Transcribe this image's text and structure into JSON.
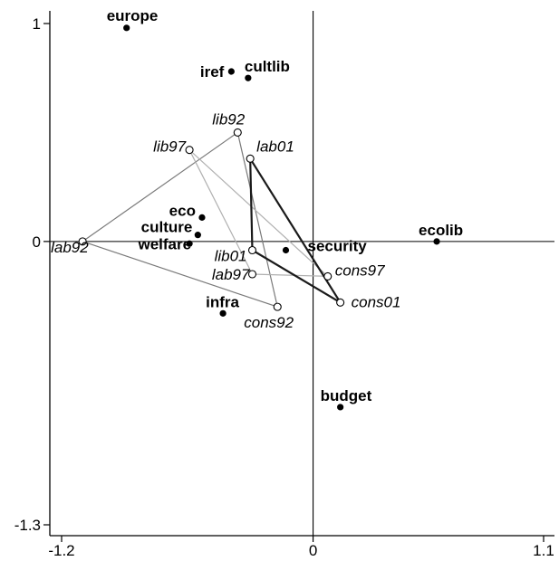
{
  "chart_data": {
    "type": "scatter",
    "xlim": [
      -1.2,
      1.1
    ],
    "ylim": [
      -1.3,
      1.0
    ],
    "x_ticks": [
      {
        "value": -1.2,
        "label": "-1.2"
      },
      {
        "value": 0,
        "label": "0"
      },
      {
        "value": 1.1,
        "label": "1.1"
      }
    ],
    "y_ticks": [
      {
        "value": 1.0,
        "label": "1"
      },
      {
        "value": 0,
        "label": "0"
      },
      {
        "value": -1.3,
        "label": "-1.3"
      }
    ],
    "title": "",
    "xlabel": "",
    "ylabel": "",
    "grid": false,
    "reference_lines": {
      "x": 0,
      "y": 0
    },
    "variables": [
      {
        "label": "europe",
        "x": -0.89,
        "y": 0.98,
        "anchor": "start",
        "dx": -22,
        "dy": -8
      },
      {
        "label": "iref",
        "x": -0.39,
        "y": 0.78,
        "anchor": "end",
        "dx": -8,
        "dy": 6
      },
      {
        "label": "cultlib",
        "x": -0.31,
        "y": 0.75,
        "anchor": "start",
        "dx": -4,
        "dy": -7
      },
      {
        "label": "eco",
        "x": -0.53,
        "y": 0.11,
        "anchor": "end",
        "dx": -7,
        "dy": -2
      },
      {
        "label": "culture",
        "x": -0.55,
        "y": 0.03,
        "anchor": "end",
        "dx": -6,
        "dy": -3
      },
      {
        "label": "welfare",
        "x": -0.59,
        "y": -0.01,
        "anchor": "end",
        "dx": 2,
        "dy": 6
      },
      {
        "label": "security",
        "x": -0.13,
        "y": -0.04,
        "anchor": "start",
        "dx": 24,
        "dy": 1
      },
      {
        "label": "ecolib",
        "x": 0.59,
        "y": 0.0,
        "anchor": "start",
        "dx": -20,
        "dy": -7
      },
      {
        "label": "infra",
        "x": -0.43,
        "y": -0.33,
        "anchor": "start",
        "dx": -19,
        "dy": -7
      },
      {
        "label": "budget",
        "x": 0.13,
        "y": -0.76,
        "anchor": "start",
        "dx": -22,
        "dy": -7
      }
    ],
    "parties": [
      {
        "label": "lab92",
        "x": -1.1,
        "y": 0.0,
        "anchor": "start",
        "dx": -35,
        "dy": 12
      },
      {
        "label": "cons92",
        "x": -0.17,
        "y": -0.3,
        "anchor": "start",
        "dx": -37,
        "dy": 23
      },
      {
        "label": "lib92",
        "x": -0.36,
        "y": 0.5,
        "anchor": "start",
        "dx": -28,
        "dy": -9
      },
      {
        "label": "lib97",
        "x": -0.59,
        "y": 0.42,
        "anchor": "end",
        "dx": -4,
        "dy": 2
      },
      {
        "label": "lab97",
        "x": -0.29,
        "y": -0.15,
        "anchor": "end",
        "dx": -3,
        "dy": 6
      },
      {
        "label": "cons97",
        "x": 0.07,
        "y": -0.16,
        "anchor": "start",
        "dx": 8,
        "dy": -1
      },
      {
        "label": "lab01",
        "x": -0.3,
        "y": 0.38,
        "anchor": "start",
        "dx": 7,
        "dy": -8
      },
      {
        "label": "lib01",
        "x": -0.29,
        "y": -0.04,
        "anchor": "end",
        "dx": -6,
        "dy": 12
      },
      {
        "label": "cons01",
        "x": 0.13,
        "y": -0.28,
        "anchor": "start",
        "dx": 12,
        "dy": 5
      }
    ],
    "triangles": [
      {
        "vertices": [
          "lab92",
          "lib92",
          "cons92"
        ],
        "color": "#7a7a7a",
        "width": 1.2
      },
      {
        "vertices": [
          "lab97",
          "lib97",
          "cons97"
        ],
        "color": "#b0b0b0",
        "width": 1.2
      },
      {
        "vertices": [
          "lab01",
          "lib01",
          "cons01"
        ],
        "color": "#1a1a1a",
        "width": 2.2
      }
    ]
  }
}
